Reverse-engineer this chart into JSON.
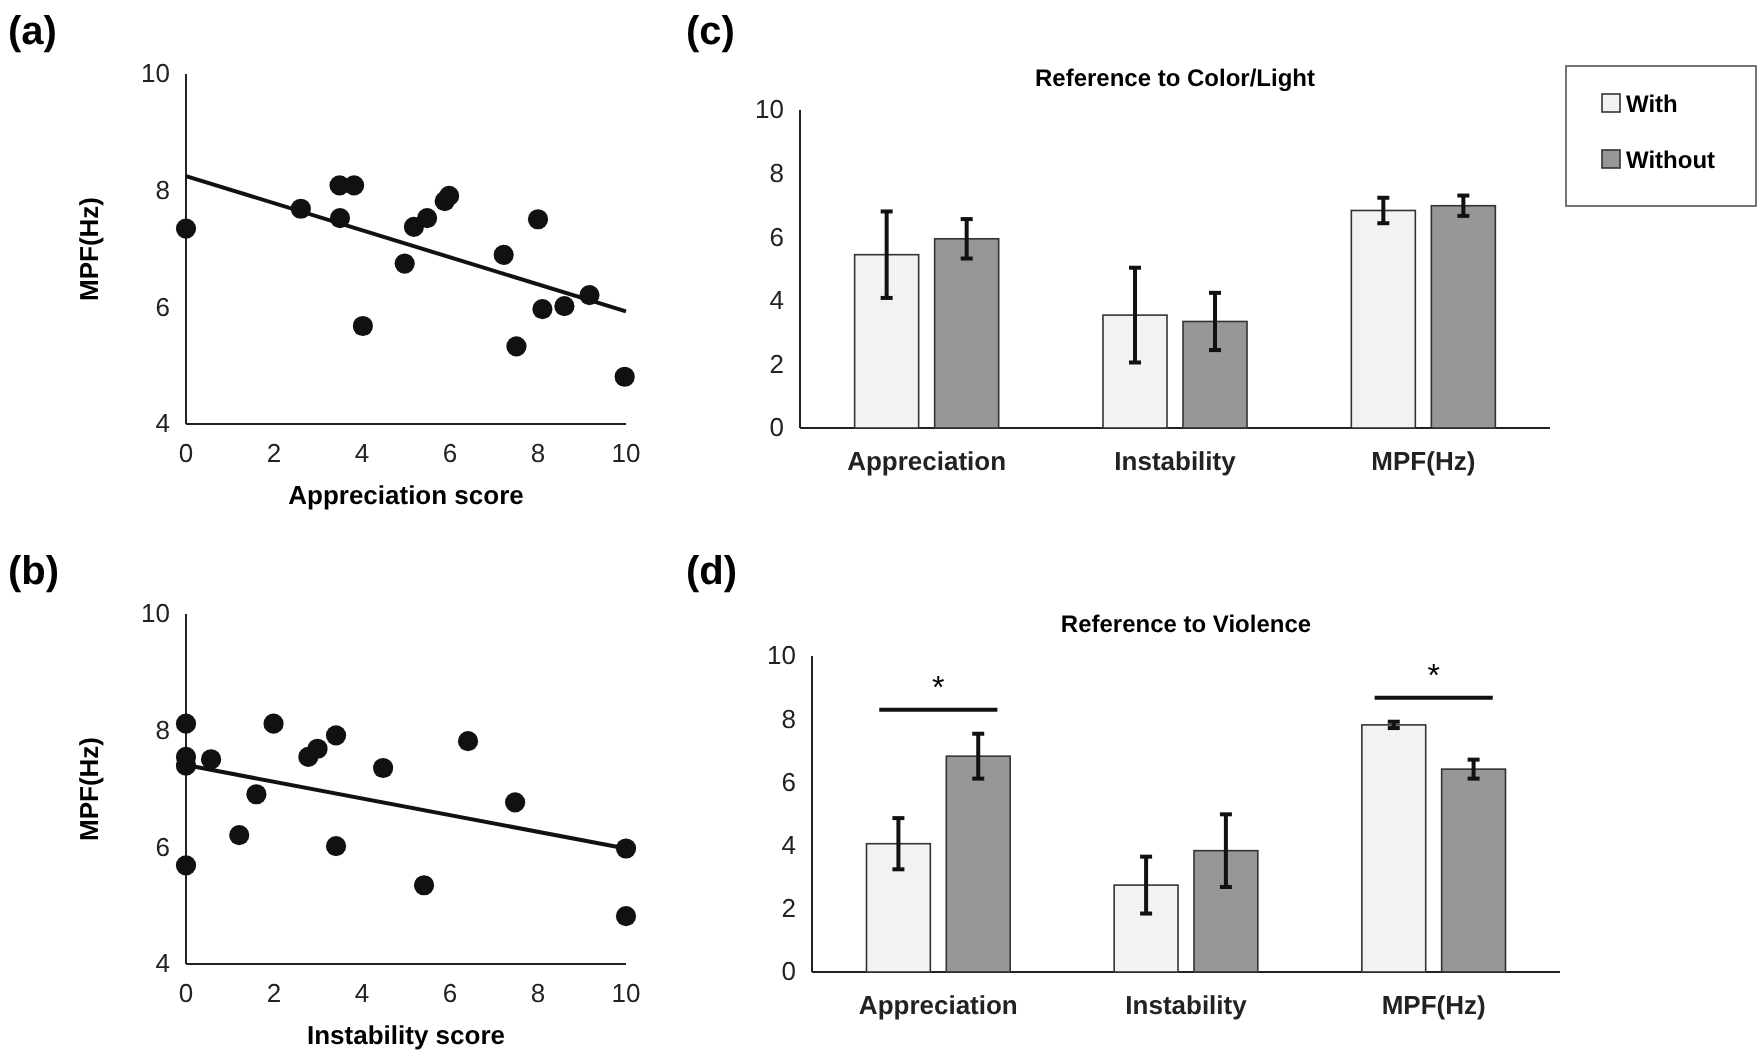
{
  "chart_data": [
    {
      "type": "scatter",
      "title": "(a)",
      "xlabel": "Appreciation score",
      "ylabel": "MPF(Hz)",
      "xlim": [
        0,
        10
      ],
      "xticks": [
        0,
        2,
        4,
        6,
        8,
        10
      ],
      "ylim": [
        4,
        10
      ],
      "yticks": [
        4,
        6,
        8,
        10
      ],
      "series": [
        {
          "type": "scatter",
          "marker": "circle",
          "color": "#111111",
          "x": [
            0,
            2.61,
            3.49,
            3.82,
            3.5,
            4.02,
            4.97,
            5.18,
            5.48,
            5.88,
            5.98,
            7.22,
            7.51,
            8.0,
            8.1,
            8.6,
            9.17,
            9.97
          ],
          "values": [
            7.35,
            7.69,
            8.09,
            8.09,
            7.53,
            5.68,
            6.75,
            7.38,
            7.53,
            7.82,
            7.91,
            6.9,
            5.33,
            7.51,
            5.97,
            6.02,
            6.21,
            4.81
          ]
        },
        {
          "type": "line",
          "color": "#111111",
          "x": [
            0,
            10
          ],
          "values": [
            8.25,
            5.93
          ]
        }
      ]
    },
    {
      "type": "scatter",
      "title": "(b)",
      "xlabel": "Instability score",
      "ylabel": "MPF(Hz)",
      "xlim": [
        0,
        10
      ],
      "xticks": [
        0,
        2,
        4,
        6,
        8,
        10
      ],
      "ylim": [
        4,
        10
      ],
      "yticks": [
        4,
        6,
        8,
        10
      ],
      "series": [
        {
          "type": "scatter",
          "marker": "circle",
          "color": "#111111",
          "x": [
            0,
            0,
            0,
            0,
            0.57,
            1.6,
            1.21,
            1.99,
            2.78,
            2.99,
            3.41,
            3.41,
            4.48,
            5.41,
            6.41,
            7.48,
            10,
            10
          ],
          "values": [
            8.12,
            7.55,
            7.4,
            5.69,
            7.51,
            6.91,
            6.21,
            8.12,
            7.55,
            7.69,
            7.92,
            6.02,
            7.36,
            5.35,
            7.82,
            6.77,
            5.98,
            4.82
          ]
        },
        {
          "type": "line",
          "color": "#111111",
          "x": [
            0,
            10
          ],
          "values": [
            7.41,
            5.98
          ]
        }
      ]
    },
    {
      "type": "bar",
      "title": "(c)",
      "subtitle": "Reference to Color/Light",
      "categories": [
        "Appreciation",
        "Instability",
        "MPF(Hz)"
      ],
      "ylim": [
        0,
        10
      ],
      "yticks": [
        0,
        2,
        4,
        6,
        8,
        10
      ],
      "legend": "top right",
      "series": [
        {
          "name": "With",
          "color": "#f2f2f2",
          "values": [
            5.45,
            3.55,
            6.84
          ],
          "errors": [
            1.36,
            1.49,
            0.4
          ]
        },
        {
          "name": "Without",
          "color": "#979797",
          "values": [
            5.95,
            3.35,
            6.99
          ],
          "errors": [
            0.62,
            0.9,
            0.32
          ]
        }
      ]
    },
    {
      "type": "bar",
      "title": "(d)",
      "subtitle": "Reference to Violence",
      "categories": [
        "Appreciation",
        "Instability",
        "MPF(Hz)"
      ],
      "ylim": [
        0,
        10
      ],
      "yticks": [
        0,
        2,
        4,
        6,
        8,
        10
      ],
      "annotations": [
        "*",
        "*"
      ],
      "series": [
        {
          "color": "#f2f2f2",
          "values": [
            4.06,
            2.75,
            7.82
          ],
          "errors": [
            0.81,
            0.9,
            0.1
          ]
        },
        {
          "color": "#979797",
          "values": [
            6.83,
            3.84,
            6.42
          ],
          "errors": [
            0.71,
            1.15,
            0.3
          ]
        }
      ]
    }
  ]
}
